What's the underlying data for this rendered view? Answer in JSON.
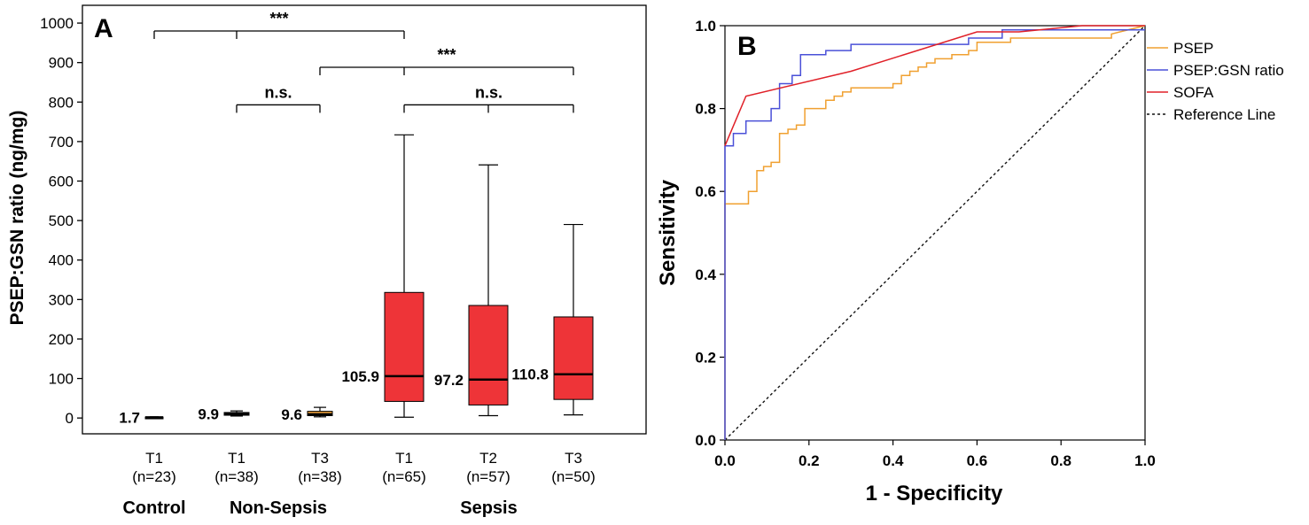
{
  "chart_data": [
    {
      "panel": "A",
      "type": "box",
      "title": "",
      "ylabel": "PSEP:GSN ratio (ng/mg)",
      "ylim": [
        -40,
        1045
      ],
      "yticks": [
        0,
        100,
        200,
        300,
        400,
        500,
        600,
        700,
        800,
        900,
        1000
      ],
      "groups": [
        {
          "label": "Control",
          "boxes": [
            0
          ]
        },
        {
          "label": "Non-Sepsis",
          "boxes": [
            1,
            2
          ]
        },
        {
          "label": "Sepsis",
          "boxes": [
            3,
            4,
            5
          ]
        }
      ],
      "boxes": [
        {
          "time": "T1",
          "n": "(n=23)",
          "median_label": "1.7",
          "min": 0.5,
          "q1": 1.0,
          "median": 1.7,
          "q3": 2.5,
          "max": 3.0,
          "color": "#111111"
        },
        {
          "time": "T1",
          "n": "(n=38)",
          "median_label": "9.9",
          "min": 5,
          "q1": 7,
          "median": 9.9,
          "q3": 14,
          "max": 18,
          "color": "#222222"
        },
        {
          "time": "T3",
          "n": "(n=38)",
          "median_label": "9.6",
          "min": 3,
          "q1": 6,
          "median": 9.6,
          "q3": 17,
          "max": 27,
          "color": "#f0a33c"
        },
        {
          "time": "T1",
          "n": "(n=65)",
          "median_label": "105.9",
          "min": 2,
          "q1": 42,
          "median": 105.9,
          "q3": 318,
          "max": 717,
          "color": "#ee3438"
        },
        {
          "time": "T2",
          "n": "(n=57)",
          "median_label": "97.2",
          "min": 6,
          "q1": 33,
          "median": 97.2,
          "q3": 285,
          "max": 641,
          "color": "#ee3438"
        },
        {
          "time": "T3",
          "n": "(n=50)",
          "median_label": "110.8",
          "min": 8,
          "q1": 47,
          "median": 110.8,
          "q3": 256,
          "max": 490,
          "color": "#ee3438"
        }
      ],
      "significance": [
        {
          "label": "***",
          "from": 0,
          "to": 3,
          "mid": 1,
          "y": 980
        },
        {
          "label": "***",
          "from": 2,
          "to": 5,
          "mid": 3,
          "y": 888
        },
        {
          "label": "n.s.",
          "from": 1,
          "to": 2,
          "mid": null,
          "y": 793
        },
        {
          "label": "n.s.",
          "from": 3,
          "to": 5,
          "mid": 4,
          "y": 793
        }
      ]
    },
    {
      "panel": "B",
      "type": "line",
      "title": "",
      "xlabel": "1 - Specificity",
      "ylabel": "Sensitivity",
      "xlim": [
        0,
        1
      ],
      "ylim": [
        0,
        1
      ],
      "xticks": [
        "0.0",
        "0.2",
        "0.4",
        "0.6",
        "0.8",
        "1.0"
      ],
      "yticks": [
        "0.0",
        "0.2",
        "0.4",
        "0.6",
        "0.8",
        "1.0"
      ],
      "legend_position": "right",
      "series": [
        {
          "name": "PSEP",
          "color": "#f0a030",
          "dash": "",
          "x": [
            0,
            0,
            0.056,
            0.056,
            0.076,
            0.076,
            0.092,
            0.092,
            0.11,
            0.11,
            0.13,
            0.13,
            0.15,
            0.15,
            0.17,
            0.17,
            0.19,
            0.19,
            0.24,
            0.24,
            0.26,
            0.26,
            0.28,
            0.28,
            0.3,
            0.3,
            0.4,
            0.4,
            0.42,
            0.42,
            0.44,
            0.44,
            0.46,
            0.46,
            0.48,
            0.48,
            0.5,
            0.5,
            0.54,
            0.54,
            0.58,
            0.58,
            0.6,
            0.6,
            0.68,
            0.68,
            0.92,
            0.92,
            1.0
          ],
          "y": [
            0,
            0.57,
            0.57,
            0.6,
            0.6,
            0.65,
            0.65,
            0.66,
            0.66,
            0.67,
            0.67,
            0.74,
            0.74,
            0.75,
            0.75,
            0.76,
            0.76,
            0.8,
            0.8,
            0.82,
            0.82,
            0.83,
            0.83,
            0.84,
            0.84,
            0.85,
            0.85,
            0.86,
            0.86,
            0.88,
            0.88,
            0.89,
            0.89,
            0.9,
            0.9,
            0.91,
            0.91,
            0.92,
            0.92,
            0.93,
            0.93,
            0.94,
            0.94,
            0.96,
            0.96,
            0.97,
            0.97,
            0.98,
            1.0
          ]
        },
        {
          "name": "PSEP:GSN ratio",
          "color": "#4a50d8",
          "dash": "",
          "x": [
            0,
            0,
            0.02,
            0.02,
            0.05,
            0.05,
            0.11,
            0.11,
            0.13,
            0.13,
            0.16,
            0.16,
            0.18,
            0.18,
            0.24,
            0.24,
            0.3,
            0.3,
            0.58,
            0.58,
            0.66,
            0.66,
            1.0
          ],
          "y": [
            0,
            0.71,
            0.71,
            0.74,
            0.74,
            0.77,
            0.77,
            0.8,
            0.8,
            0.86,
            0.86,
            0.88,
            0.88,
            0.93,
            0.93,
            0.94,
            0.94,
            0.955,
            0.955,
            0.97,
            0.97,
            0.99,
            0.99
          ]
        },
        {
          "name": "SOFA",
          "color": "#e02028",
          "dash": "",
          "x": [
            0,
            0.05,
            0.3,
            0.6,
            0.7,
            0.85,
            1.0
          ],
          "y": [
            0.71,
            0.83,
            0.89,
            0.985,
            0.985,
            1.0,
            1.0
          ]
        },
        {
          "name": "Reference Line",
          "color": "#111111",
          "dash": "3,3",
          "x": [
            0,
            1
          ],
          "y": [
            0,
            1
          ]
        }
      ]
    }
  ]
}
